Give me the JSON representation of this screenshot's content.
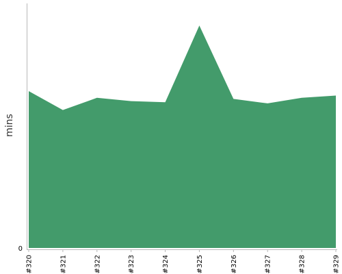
{
  "chart_data": {
    "type": "area",
    "title": "",
    "xlabel": "",
    "ylabel": "mins",
    "categories": [
      "#320",
      "#321",
      "#322",
      "#323",
      "#324",
      "#325",
      "#326",
      "#327",
      "#328",
      "#329"
    ],
    "series": [
      {
        "values": [
          70.5,
          62,
          67.5,
          66,
          65.5,
          100,
          67,
          65,
          67.5,
          68.5
        ]
      }
    ],
    "ylim": [
      0,
      105
    ],
    "y_ticks": [
      {
        "value": 0,
        "label": "0"
      }
    ],
    "grid": false,
    "legend": "none",
    "colors": {
      "area": "#439b6b",
      "axis": "#b8b8b8"
    }
  }
}
